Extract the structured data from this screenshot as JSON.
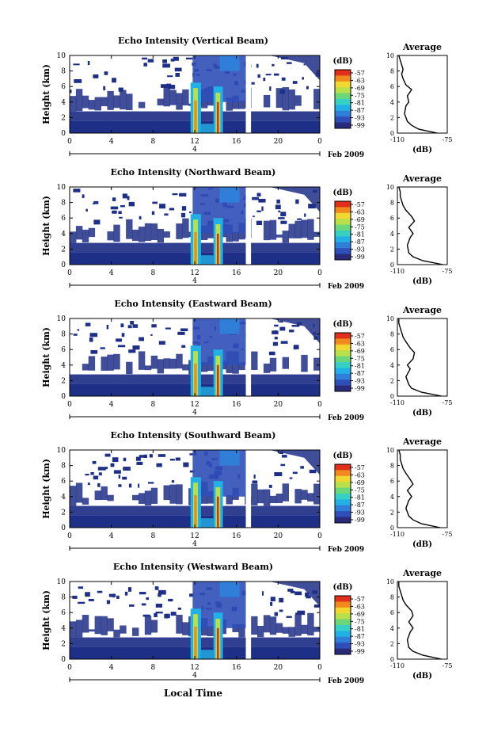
{
  "figure": {
    "xlabel": "Local Time",
    "date_label": "Feb 2009",
    "date_day": "4",
    "colorbar_unit": "(dB)",
    "colorbar_ticks": [
      "-57",
      "-63",
      "-69",
      "-75",
      "-81",
      "-87",
      "-93",
      "-99"
    ],
    "avg_title": "Average",
    "avg_xlabel": "(dB)",
    "avg_xticks": [
      "-110",
      "-75"
    ],
    "ylabel": "Height (km)",
    "x_ticks": [
      "0",
      "4",
      "8",
      "12",
      "16",
      "20",
      "0"
    ],
    "y_ticks": [
      "0",
      "2",
      "4",
      "6",
      "8",
      "10"
    ],
    "colors": {
      "background": "#1e2f87",
      "scale": [
        "#2a2a7a",
        "#2f4fb8",
        "#2f7fd8",
        "#22b0e6",
        "#36d1c4",
        "#6ad87a",
        "#b8e04a",
        "#f0d830",
        "#f08a1e",
        "#e0301c"
      ]
    }
  },
  "chart_data": [
    {
      "type": "heatmap",
      "title": "Echo Intensity (Vertical Beam)",
      "xlabel": "",
      "ylabel": "Height (km)",
      "xlim": [
        0,
        24
      ],
      "ylim": [
        0,
        10
      ],
      "clim": [
        -99,
        -57
      ],
      "data_gap_hours": [
        16.9,
        17.4
      ],
      "profile": {
        "title": "Average",
        "xlim": [
          -110,
          -75
        ],
        "ylim": [
          0,
          10
        ],
        "x": [
          -82,
          -95,
          -100,
          -103,
          -105,
          -104,
          -102,
          -103,
          -100,
          -104,
          -106,
          -107,
          -106,
          -107,
          -108,
          -109
        ],
        "y": [
          0,
          0.5,
          1.0,
          1.5,
          2.5,
          3.5,
          4.0,
          4.8,
          5.6,
          6.2,
          7.0,
          7.6,
          8.2,
          8.8,
          9.4,
          10
        ]
      }
    },
    {
      "type": "heatmap",
      "title": "Echo Intensity (Northward Beam)",
      "xlabel": "",
      "ylabel": "Height (km)",
      "xlim": [
        0,
        24
      ],
      "ylim": [
        0,
        10
      ],
      "clim": [
        -99,
        -57
      ],
      "data_gap_hours": [
        16.9,
        17.4
      ],
      "profile": {
        "title": "Average",
        "xlim": [
          -110,
          -75
        ],
        "ylim": [
          0,
          10
        ],
        "x": [
          -78,
          -92,
          -99,
          -102,
          -103,
          -101,
          -99,
          -102,
          -98,
          -100,
          -104,
          -106,
          -107,
          -108,
          -108,
          -109
        ],
        "y": [
          0,
          0.5,
          1.0,
          1.5,
          2.5,
          3.5,
          4.0,
          4.8,
          5.6,
          6.2,
          7.0,
          7.6,
          8.2,
          8.8,
          9.4,
          10
        ]
      }
    },
    {
      "type": "heatmap",
      "title": "Echo Intensity (Eastward Beam)",
      "xlabel": "",
      "ylabel": "Height (km)",
      "xlim": [
        0,
        24
      ],
      "ylim": [
        0,
        10
      ],
      "clim": [
        -99,
        -57
      ],
      "data_gap_hours": [
        16.9,
        17.4
      ],
      "profile": {
        "title": "Average",
        "xlim": [
          -110,
          -75
        ],
        "ylim": [
          0,
          10
        ],
        "x": [
          -79,
          -93,
          -100,
          -102,
          -104,
          -101,
          -103,
          -99,
          -98,
          -101,
          -104,
          -106,
          -107,
          -108,
          -109,
          -109
        ],
        "y": [
          0,
          0.5,
          1.0,
          1.5,
          2.5,
          3.5,
          4.0,
          4.8,
          5.6,
          6.2,
          7.0,
          7.6,
          8.2,
          8.8,
          9.4,
          10
        ]
      }
    },
    {
      "type": "heatmap",
      "title": "Echo Intensity (Southward Beam)",
      "xlabel": "",
      "ylabel": "Height (km)",
      "xlim": [
        0,
        24
      ],
      "ylim": [
        0,
        10
      ],
      "clim": [
        -99,
        -57
      ],
      "data_gap_hours": [
        16.9,
        17.4
      ],
      "profile": {
        "title": "Average",
        "xlim": [
          -110,
          -75
        ],
        "ylim": [
          0,
          10
        ],
        "x": [
          -80,
          -93,
          -99,
          -102,
          -104,
          -102,
          -100,
          -103,
          -99,
          -101,
          -104,
          -106,
          -107,
          -108,
          -108,
          -109
        ],
        "y": [
          0,
          0.5,
          1.0,
          1.5,
          2.5,
          3.5,
          4.0,
          4.8,
          5.6,
          6.2,
          7.0,
          7.6,
          8.2,
          8.8,
          9.4,
          10
        ]
      }
    },
    {
      "type": "heatmap",
      "title": "Echo Intensity (Westward Beam)",
      "xlabel": "Local Time",
      "ylabel": "Height (km)",
      "xlim": [
        0,
        24
      ],
      "ylim": [
        0,
        10
      ],
      "clim": [
        -99,
        -57
      ],
      "data_gap_hours": [
        16.9,
        17.4
      ],
      "profile": {
        "title": "Average",
        "xlim": [
          -110,
          -75
        ],
        "ylim": [
          0,
          10
        ],
        "x": [
          -79,
          -92,
          -99,
          -102,
          -103,
          -101,
          -99,
          -102,
          -99,
          -100,
          -104,
          -106,
          -107,
          -108,
          -109,
          -109
        ],
        "y": [
          0,
          0.5,
          1.0,
          1.5,
          2.5,
          3.5,
          4.0,
          4.8,
          5.6,
          6.2,
          7.0,
          7.6,
          8.2,
          8.8,
          9.4,
          10
        ]
      }
    }
  ]
}
